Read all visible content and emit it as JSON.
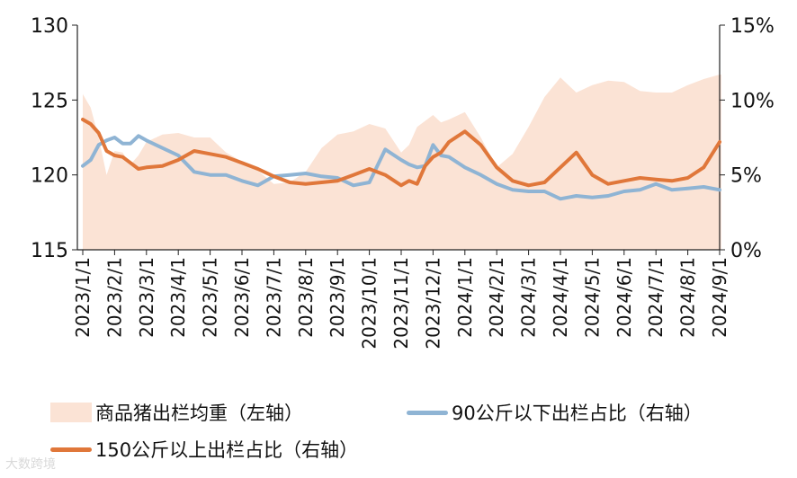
{
  "chart_data": {
    "type": "line",
    "categories": [
      "2023/1/1",
      "2023/2/1",
      "2023/3/1",
      "2023/4/1",
      "2023/5/1",
      "2023/6/1",
      "2023/7/1",
      "2023/8/1",
      "2023/9/1",
      "2023/10/1",
      "2023/11/1",
      "2023/12/1",
      "2024/1/1",
      "2024/2/1",
      "2024/3/1",
      "2024/4/1",
      "2024/5/1",
      "2024/6/1",
      "2024/7/1",
      "2024/8/1",
      "2024/9/1"
    ],
    "y_left": {
      "ylim": [
        115,
        130
      ],
      "ticks": [
        "115",
        "120",
        "125",
        "130"
      ]
    },
    "y_right": {
      "ylim": [
        0,
        15
      ],
      "ticks": [
        "0%",
        "5%",
        "10%",
        "15%"
      ]
    },
    "grid": false,
    "legend_position": "bottom",
    "series": [
      {
        "name": "商品猪出栏均重（左轴）",
        "kind": "area",
        "axis": "left",
        "color": "#fbe3d5",
        "x": [
          0,
          0.25,
          0.5,
          0.75,
          1,
          1.25,
          1.5,
          1.75,
          2,
          2.5,
          3,
          3.5,
          4,
          4.5,
          5,
          5.5,
          6,
          6.5,
          7,
          7.5,
          8,
          8.5,
          9,
          9.5,
          10,
          10.25,
          10.5,
          11,
          11.25,
          11.5,
          12,
          12.5,
          13,
          13.5,
          14,
          14.5,
          15,
          15.5,
          16,
          16.5,
          17,
          17.5,
          18,
          18.5,
          19,
          19.5,
          20,
          20.05
        ],
        "values": [
          125.4,
          124.5,
          122.5,
          120.0,
          121.6,
          121.5,
          120.7,
          121.3,
          122.2,
          122.7,
          122.8,
          122.5,
          122.5,
          121.5,
          120.9,
          120.3,
          119.4,
          119.5,
          120.2,
          121.8,
          122.7,
          122.9,
          123.4,
          123.1,
          121.5,
          122.0,
          123.2,
          124.0,
          123.5,
          123.7,
          124.2,
          122.5,
          120.5,
          121.4,
          123.2,
          125.2,
          126.5,
          125.5,
          126.0,
          126.3,
          126.2,
          125.6,
          125.5,
          125.5,
          126.0,
          126.4,
          126.7,
          126.7
        ]
      },
      {
        "name": "90公斤以下出栏占比（右轴）",
        "kind": "line",
        "axis": "right",
        "color": "#8fb4d4",
        "x": [
          0,
          0.25,
          0.5,
          0.75,
          1,
          1.25,
          1.5,
          1.75,
          2,
          2.5,
          3,
          3.5,
          4,
          4.5,
          5,
          5.5,
          6,
          6.5,
          7,
          7.5,
          8,
          8.5,
          9,
          9.5,
          10,
          10.25,
          10.5,
          10.75,
          11,
          11.25,
          11.5,
          12,
          12.5,
          13,
          13.5,
          14,
          14.5,
          15,
          15.5,
          16,
          16.5,
          17,
          17.5,
          18,
          18.5,
          19,
          19.5,
          20
        ],
        "values": [
          5.6,
          6.0,
          7.0,
          7.3,
          7.5,
          7.1,
          7.1,
          7.6,
          7.3,
          6.8,
          6.3,
          5.2,
          5.0,
          5.0,
          4.6,
          4.3,
          4.9,
          5.0,
          5.1,
          4.9,
          4.8,
          4.3,
          4.5,
          6.7,
          6.0,
          5.7,
          5.5,
          5.6,
          7.0,
          6.3,
          6.2,
          5.5,
          5.0,
          4.4,
          4.0,
          3.9,
          3.9,
          3.4,
          3.6,
          3.5,
          3.6,
          3.9,
          4.0,
          4.4,
          4.0,
          4.1,
          4.2,
          4.0
        ]
      },
      {
        "name": "150公斤以上出栏占比（右轴）",
        "kind": "line",
        "axis": "right",
        "color": "#e0773a",
        "x": [
          0,
          0.25,
          0.5,
          0.75,
          1,
          1.25,
          1.5,
          1.75,
          2,
          2.5,
          3,
          3.5,
          4,
          4.5,
          5,
          5.5,
          6,
          6.5,
          7,
          7.5,
          8,
          8.5,
          9,
          9.5,
          10,
          10.25,
          10.5,
          10.75,
          11,
          11.25,
          11.5,
          12,
          12.5,
          13,
          13.5,
          14,
          14.5,
          15,
          15.5,
          16,
          16.5,
          17,
          17.5,
          18,
          18.5,
          19,
          19.5,
          20
        ],
        "values": [
          8.7,
          8.4,
          7.8,
          6.6,
          6.3,
          6.2,
          5.8,
          5.4,
          5.5,
          5.6,
          6.0,
          6.6,
          6.4,
          6.2,
          5.8,
          5.4,
          4.9,
          4.5,
          4.4,
          4.5,
          4.6,
          5.0,
          5.4,
          5.0,
          4.3,
          4.6,
          4.4,
          5.6,
          6.2,
          6.5,
          7.2,
          7.9,
          7.0,
          5.5,
          4.6,
          4.3,
          4.5,
          5.5,
          6.5,
          5.0,
          4.4,
          4.6,
          4.8,
          4.7,
          4.6,
          4.8,
          5.5,
          7.2
        ]
      }
    ]
  },
  "watermark": "大数跨境"
}
